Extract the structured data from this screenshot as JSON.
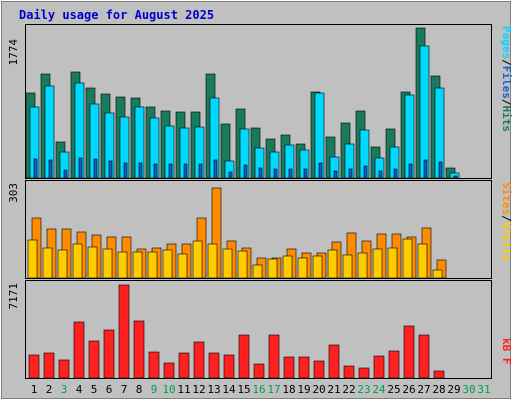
{
  "title": "Daily usage for August 2025",
  "chart_data": [
    {
      "type": "bar",
      "panel": "hits-files-pages",
      "y_axis_max_label": "1774",
      "ylim": [
        0,
        1774
      ],
      "legend_placement": "right-vertical",
      "legend": [
        "Pages",
        "/",
        "Files",
        "/",
        "Hits"
      ],
      "categories": [
        "1",
        "2",
        "3",
        "4",
        "5",
        "6",
        "7",
        "8",
        "9",
        "10",
        "11",
        "12",
        "13",
        "14",
        "15",
        "16",
        "17",
        "18",
        "19",
        "20",
        "21",
        "22",
        "23",
        "24",
        "25",
        "26",
        "27",
        "28",
        "29",
        "30",
        "31"
      ],
      "series": [
        {
          "name": "Hits",
          "color": "#1a7a5e",
          "values": [
            1000,
            1220,
            420,
            1240,
            1060,
            990,
            950,
            940,
            840,
            790,
            770,
            770,
            1220,
            630,
            810,
            590,
            460,
            500,
            400,
            1010,
            480,
            650,
            790,
            360,
            580,
            1010,
            1760,
            1200,
            120,
            0,
            0
          ]
        },
        {
          "name": "Files",
          "color": "#00d8ff",
          "values": [
            840,
            1080,
            310,
            1120,
            870,
            760,
            720,
            840,
            700,
            610,
            590,
            600,
            940,
            200,
            570,
            350,
            300,
            390,
            330,
            1000,
            250,
            400,
            560,
            240,
            370,
            980,
            1550,
            1060,
            60,
            0,
            0
          ]
        },
        {
          "name": "Pages",
          "color": "#1560c8",
          "values": [
            220,
            210,
            90,
            230,
            220,
            200,
            180,
            180,
            170,
            160,
            160,
            160,
            210,
            70,
            150,
            120,
            100,
            110,
            100,
            180,
            80,
            100,
            140,
            80,
            100,
            170,
            210,
            190,
            20,
            0,
            0
          ]
        }
      ]
    },
    {
      "type": "bar",
      "panel": "visits-sites",
      "y_axis_max_label": "303",
      "ylim": [
        0,
        303
      ],
      "legend_placement": "right-vertical",
      "legend": [
        "Sites",
        "/",
        "Visits"
      ],
      "categories": [
        "1",
        "2",
        "3",
        "4",
        "5",
        "6",
        "7",
        "8",
        "9",
        "10",
        "11",
        "12",
        "13",
        "14",
        "15",
        "16",
        "17",
        "18",
        "19",
        "20",
        "21",
        "22",
        "23",
        "24",
        "25",
        "26",
        "27",
        "28",
        "29",
        "30",
        "31"
      ],
      "series": [
        {
          "name": "Visits",
          "color": "#ffcc00",
          "values": [
            122,
            96,
            90,
            107,
            99,
            94,
            82,
            84,
            84,
            89,
            75,
            117,
            108,
            94,
            87,
            41,
            60,
            70,
            65,
            70,
            88,
            73,
            81,
            93,
            96,
            124,
            108,
            26,
            0,
            0,
            0
          ]
        },
        {
          "name": "Sites",
          "color": "#ff8c00",
          "values": [
            192,
            156,
            156,
            147,
            138,
            131,
            131,
            93,
            96,
            107,
            109,
            192,
            288,
            117,
            96,
            65,
            65,
            93,
            79,
            79,
            115,
            142,
            117,
            140,
            140,
            130,
            161,
            59,
            0,
            0,
            0
          ]
        }
      ]
    },
    {
      "type": "bar",
      "panel": "kbytes",
      "y_axis_max_label": "7171",
      "ylim": [
        0,
        7171
      ],
      "legend_placement": "right-vertical",
      "legend": [
        "kB F"
      ],
      "categories": [
        "1",
        "2",
        "3",
        "4",
        "5",
        "6",
        "7",
        "8",
        "9",
        "10",
        "11",
        "12",
        "13",
        "14",
        "15",
        "16",
        "17",
        "18",
        "19",
        "20",
        "21",
        "22",
        "23",
        "24",
        "25",
        "26",
        "27",
        "28",
        "29",
        "30",
        "31"
      ],
      "series": [
        {
          "name": "kB F",
          "color": "#ff2020",
          "values": [
            1730,
            1860,
            1380,
            4190,
            2790,
            3650,
            7050,
            4310,
            1940,
            1170,
            1900,
            2720,
            1850,
            1730,
            3240,
            1040,
            3240,
            1580,
            1560,
            1250,
            2480,
            900,
            730,
            1670,
            2070,
            3950,
            3240,
            550,
            0,
            0,
            0
          ]
        }
      ]
    }
  ],
  "x_labels": [
    {
      "label": "1",
      "weekend": false
    },
    {
      "label": "2",
      "weekend": false
    },
    {
      "label": "3",
      "weekend": true
    },
    {
      "label": "4",
      "weekend": false
    },
    {
      "label": "5",
      "weekend": false
    },
    {
      "label": "6",
      "weekend": false
    },
    {
      "label": "7",
      "weekend": false
    },
    {
      "label": "8",
      "weekend": false
    },
    {
      "label": "9",
      "weekend": true
    },
    {
      "label": "10",
      "weekend": true
    },
    {
      "label": "11",
      "weekend": false
    },
    {
      "label": "12",
      "weekend": false
    },
    {
      "label": "13",
      "weekend": false
    },
    {
      "label": "14",
      "weekend": false
    },
    {
      "label": "15",
      "weekend": false
    },
    {
      "label": "16",
      "weekend": true
    },
    {
      "label": "17",
      "weekend": true
    },
    {
      "label": "18",
      "weekend": false
    },
    {
      "label": "19",
      "weekend": false
    },
    {
      "label": "20",
      "weekend": false
    },
    {
      "label": "21",
      "weekend": false
    },
    {
      "label": "22",
      "weekend": false
    },
    {
      "label": "23",
      "weekend": true
    },
    {
      "label": "24",
      "weekend": true
    },
    {
      "label": "25",
      "weekend": false
    },
    {
      "label": "26",
      "weekend": false
    },
    {
      "label": "27",
      "weekend": false
    },
    {
      "label": "28",
      "weekend": false
    },
    {
      "label": "29",
      "weekend": false
    },
    {
      "label": "30",
      "weekend": true
    },
    {
      "label": "31",
      "weekend": true
    }
  ],
  "colors": {
    "background": "#c0c0c0",
    "panel_bg": "#c0c0c0",
    "title": "#0000cc",
    "weekday_label": "#000000",
    "weekend_label": "#00a050",
    "pages_legend": "#00d8ff",
    "files_legend": "#1560c8",
    "hits_legend": "#1a7a5e",
    "sites_legend": "#ff8c00",
    "visits_legend": "#ffcc00",
    "kb_legend": "#ff2020",
    "separator": "#000000"
  }
}
